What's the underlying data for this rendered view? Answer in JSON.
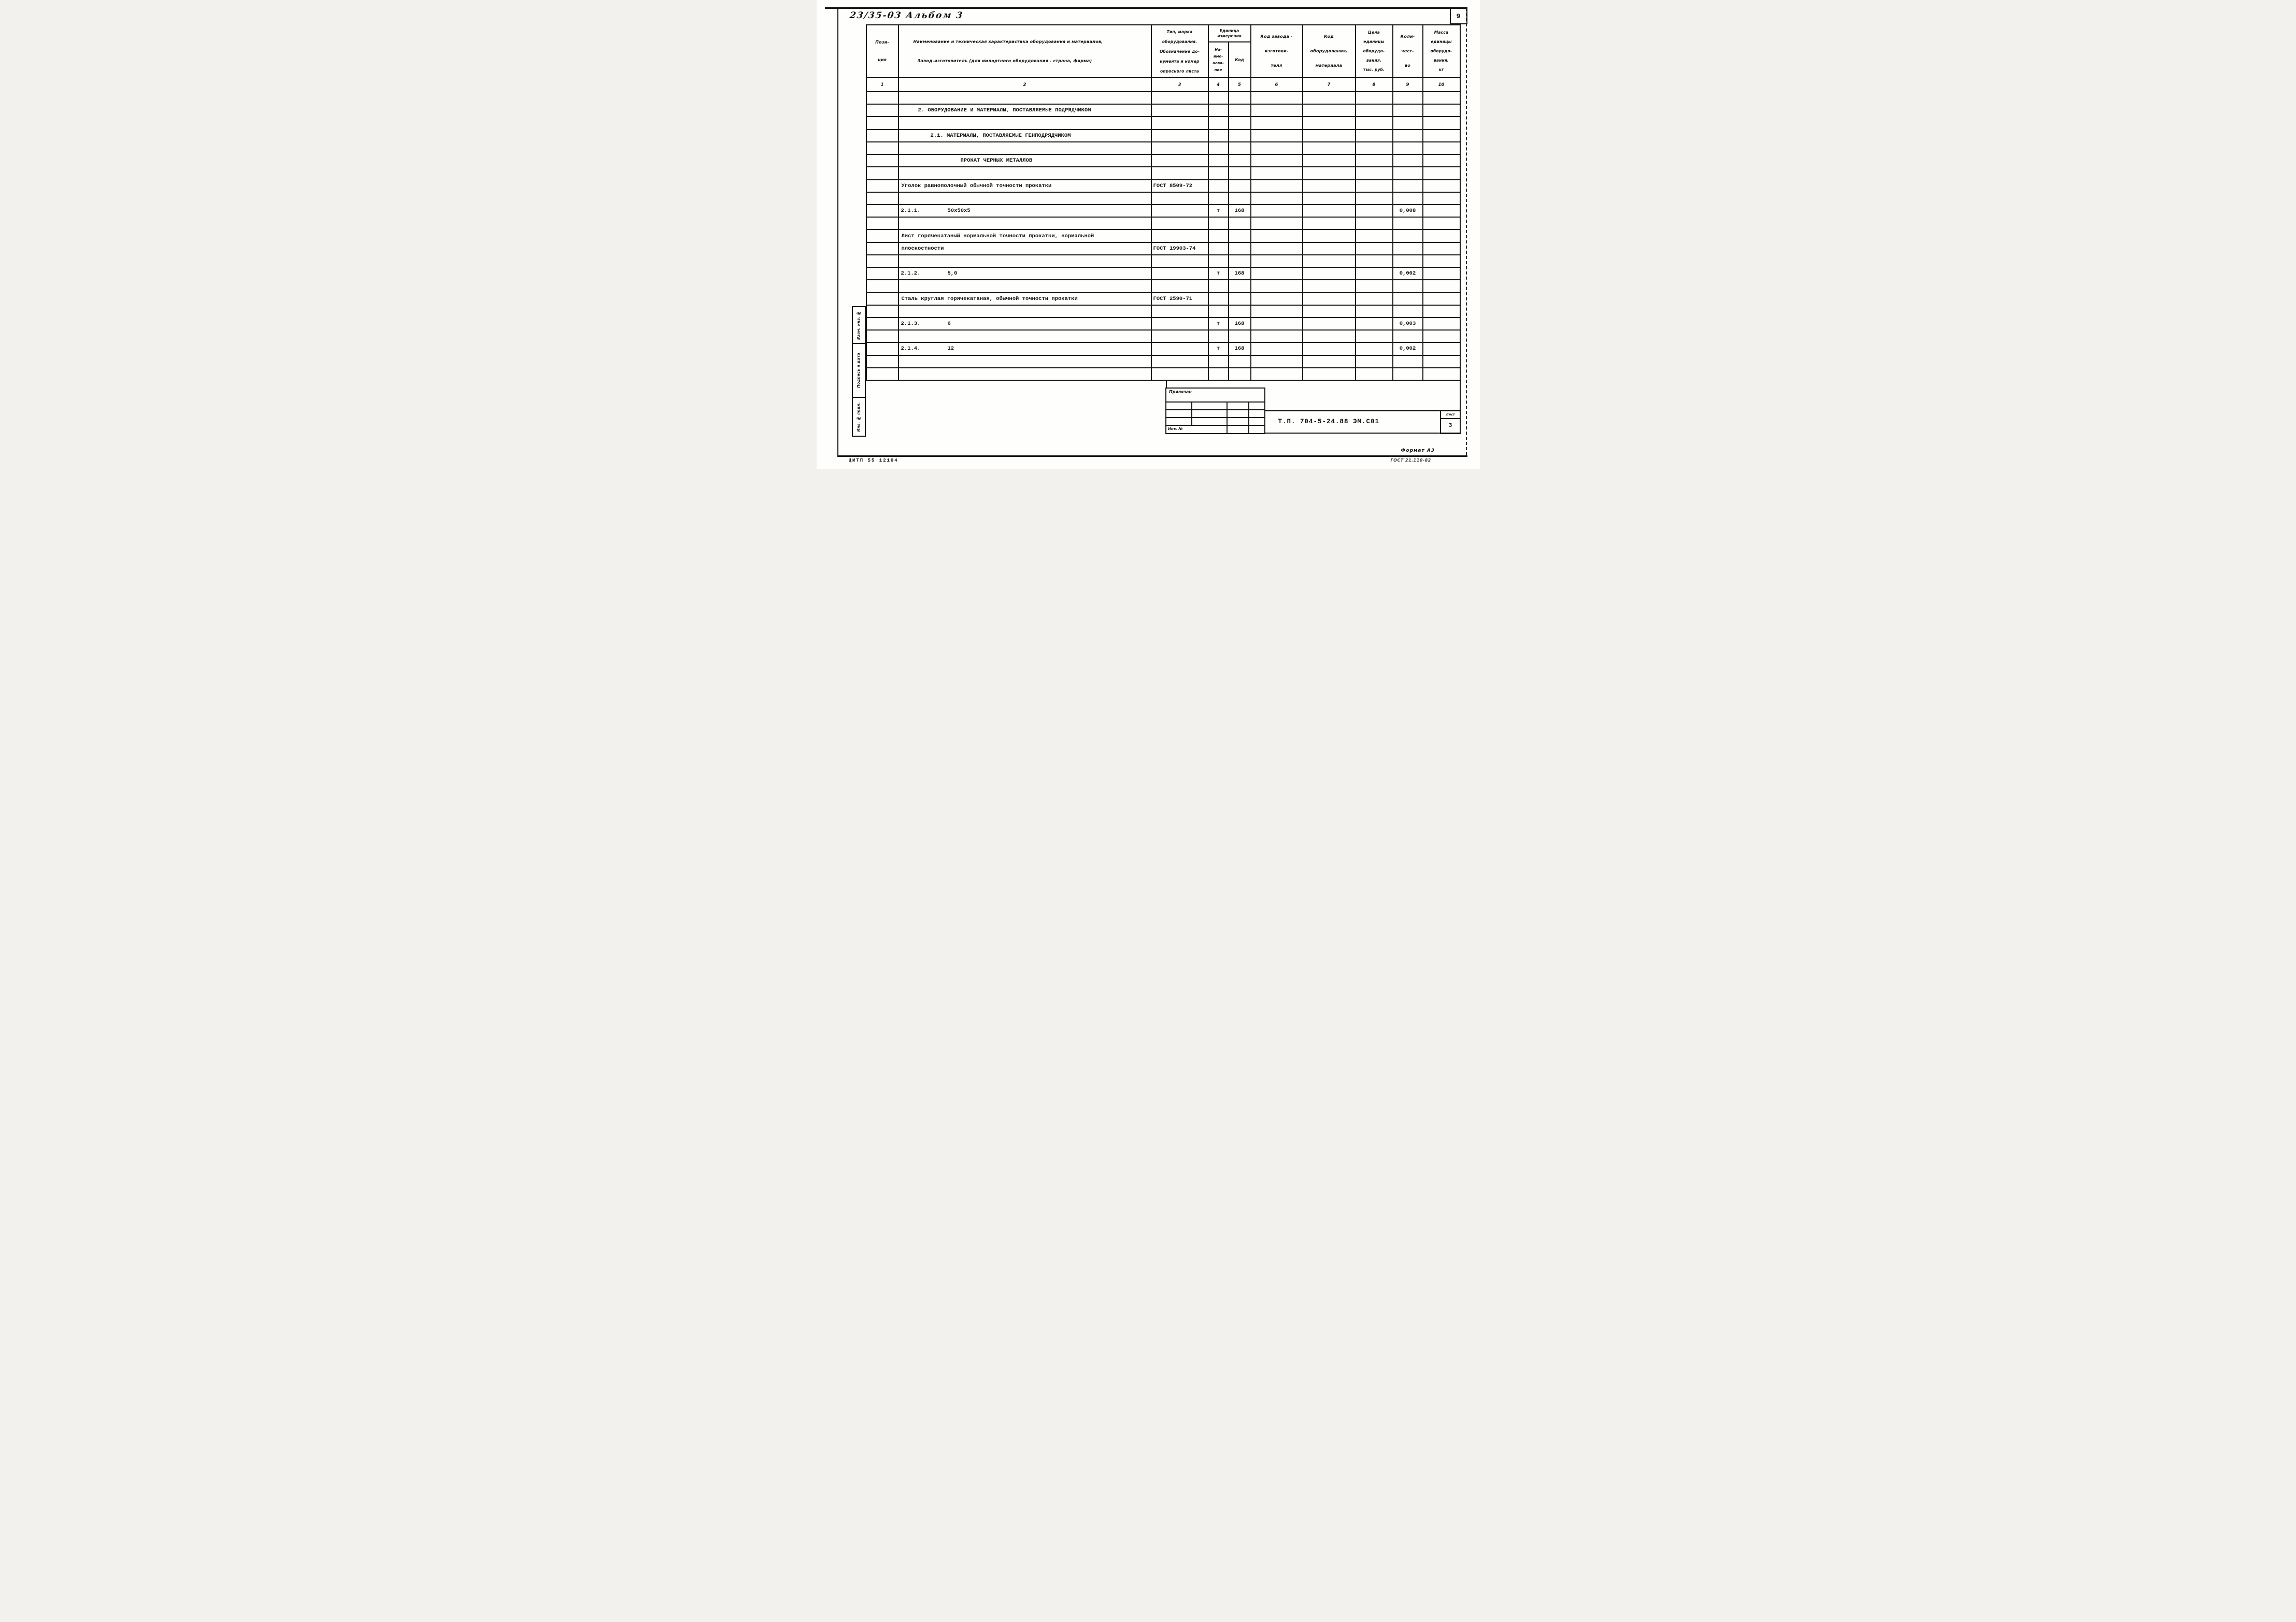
{
  "page": {
    "album_label": "23/35-03  Альбом 3",
    "page_number": "9",
    "footer_code": "ЦИТП  55 12104",
    "footer_format": "Формат А3",
    "footer_gost": "ГОСТ 21.110-82"
  },
  "table": {
    "header": {
      "c1": "Пози-\nция",
      "c2a": "Наименование и техническая характеристика  оборудования и материалов,",
      "c2b": "Завод-изготовитель  (для импортного оборудования -  страна, фирма)",
      "c3": "Тип,    марка\nоборудования.\nОбозначение до-\nкумента и номер\nопросного листа",
      "unit_label": "Единица\nизмерения",
      "c4": "На-\nиме-\nнова-\nние",
      "c5": "Код",
      "c6": "Код  завода -\nизготови-\nтеля",
      "c7": "Код\nоборудования,\nматериала",
      "c8": "Цена\nединицы\nоборудо-\nвания,\nтыс. руб.",
      "c9": "Коли-\nчест-\nво",
      "c10": "Масса\nединицы\nоборудо-\nвания,\nкг"
    },
    "col_numbers": [
      "1",
      "2",
      "3",
      "4",
      "5",
      "6",
      "7",
      "8",
      "9",
      "10"
    ],
    "body_rows": [
      null,
      {
        "c2_text": "2. ОБОРУДОВАНИЕ И МАТЕРИАЛЫ, ПОСТАВЛЯЕМЫЕ ПОДРЯДЧИКОМ",
        "c2_indent": 37
      },
      null,
      {
        "c2_text": "2.1. МАТЕРИАЛЫ, ПОСТАВЛЯЕМЫЕ ГЕНПОДРЯДЧИКОМ",
        "c2_indent": 61
      },
      null,
      {
        "c2_text": "ПРОКАТ ЧЕРНЫХ МЕТАЛЛОВ",
        "c2_indent": 119
      },
      null,
      {
        "c2_text": "Уголок равнополочный обычной точности прокатки",
        "c2_indent": 5,
        "c3": "ГОСТ 8509-72"
      },
      null,
      {
        "c2_pos": "2.1.1.",
        "c2_size": "50х50х5",
        "c4": "т",
        "c5": "168",
        "c9": "0,008"
      },
      null,
      {
        "c2_text": "Лист горячекатаный нормальной точности прокатки, нормальной",
        "c2_indent": 5
      },
      {
        "c2_text": "плоскостности",
        "c2_indent": 5,
        "c3": "ГОСТ 19903-74"
      },
      null,
      {
        "c2_pos": "2.1.2.",
        "c2_size": "5,0",
        "c4": "т",
        "c5": "168",
        "c9": "0,002"
      },
      null,
      {
        "c2_text": "Сталь круглая горячекатаная, обычной точности прокатки",
        "c2_indent": 5,
        "c3": "ГОСТ 2590-71"
      },
      null,
      {
        "c2_pos": "2.1.3.",
        "c2_size": "6",
        "c4": "т",
        "c5": "168",
        "c9": "0,003"
      },
      null,
      {
        "c2_pos": "2.1.4.",
        "c2_size": "12",
        "c4": "т",
        "c5": "168",
        "c9": "0,002"
      },
      null,
      null
    ]
  },
  "side_labels": {
    "vzam": "Взам. инв. №",
    "podpis": "Подпись и дата",
    "inv_podl": "Инв. № подл."
  },
  "stamp": {
    "privyazan": "Привязан",
    "inv_no": "Инв. №",
    "doc_code": "Т.П.  704-5-24.88  ЭМ.С01",
    "list_label": "Лист",
    "list_number": "3"
  }
}
